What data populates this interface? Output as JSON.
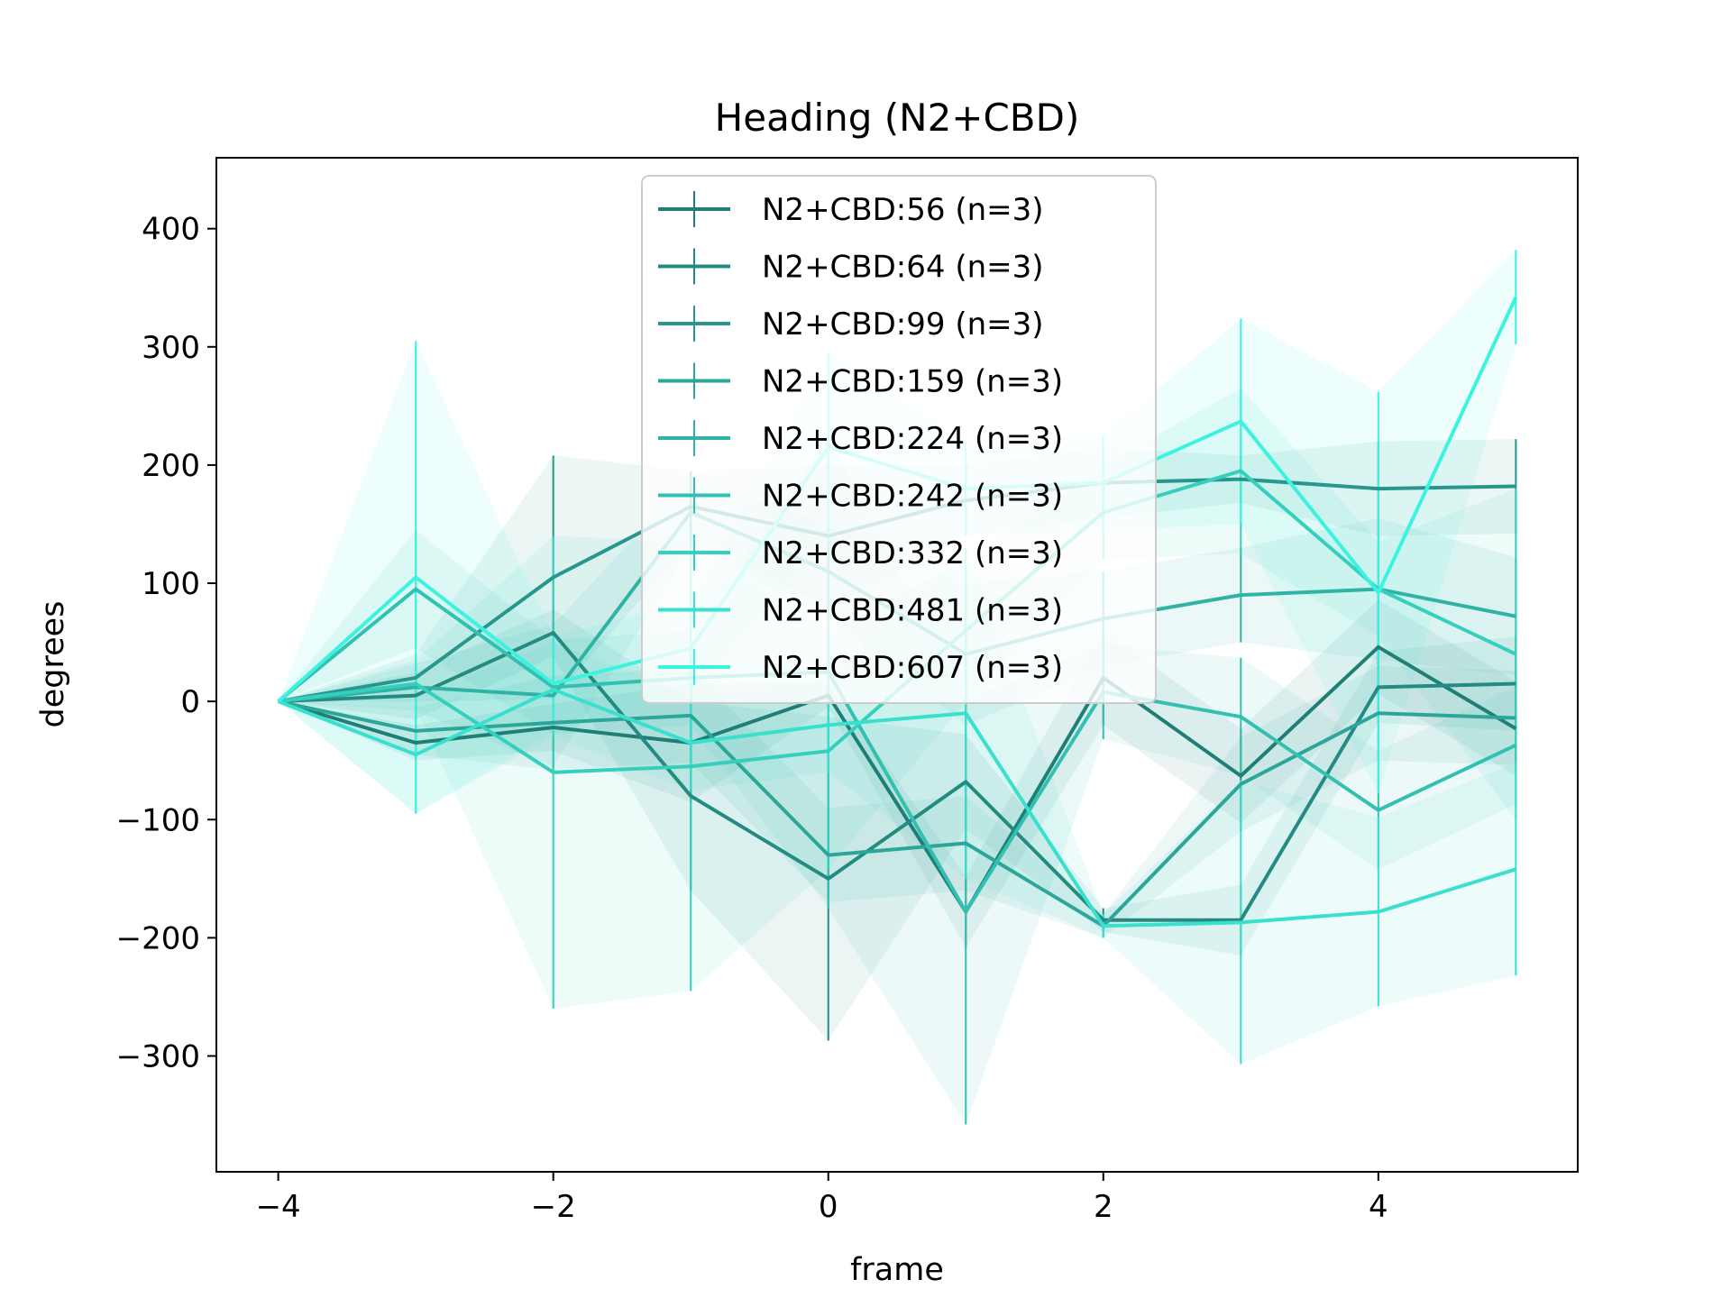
{
  "chart_data": {
    "type": "line",
    "title": "Heading (N2+CBD)",
    "xlabel": "frame",
    "ylabel": "degrees",
    "xlim": [
      -4.45,
      5.45
    ],
    "ylim": [
      -398,
      460
    ],
    "xticks": [
      -4,
      -2,
      0,
      2,
      4
    ],
    "xtick_labels": [
      "−4",
      "−2",
      "0",
      "2",
      "4"
    ],
    "yticks": [
      -300,
      -200,
      -100,
      0,
      100,
      200,
      300,
      400
    ],
    "ytick_labels": [
      "−300",
      "−200",
      "−100",
      "0",
      "100",
      "200",
      "300",
      "400"
    ],
    "x": [
      -4,
      -3,
      -2,
      -1,
      0,
      1,
      2,
      3,
      4,
      5
    ],
    "legend_position": "upper center",
    "series": [
      {
        "name": "N2+CBD:56 (n=3)",
        "color": "#1f7f77",
        "values": [
          0,
          -35,
          -22,
          -35,
          5,
          -178,
          20,
          -63,
          46,
          -23
        ],
        "errors": [
          0,
          15,
          20,
          50,
          10,
          30,
          40,
          40,
          40,
          40
        ]
      },
      {
        "name": "N2+CBD:64 (n=3)",
        "color": "#238b82",
        "values": [
          0,
          5,
          58,
          -80,
          -150,
          -68,
          -185,
          -185,
          12,
          15
        ],
        "errors": [
          0,
          20,
          20,
          80,
          137,
          40,
          10,
          30,
          30,
          40
        ]
      },
      {
        "name": "N2+CBD:99 (n=3)",
        "color": "#27978d",
        "values": [
          0,
          20,
          105,
          165,
          140,
          170,
          185,
          188,
          180,
          182
        ],
        "errors": [
          0,
          20,
          103,
          30,
          60,
          30,
          30,
          20,
          40,
          40
        ]
      },
      {
        "name": "N2+CBD:159 (n=3)",
        "color": "#2ba699",
        "values": [
          0,
          -25,
          -18,
          -12,
          -130,
          -120,
          -190,
          -70,
          -10,
          -14
        ],
        "errors": [
          0,
          20,
          40,
          40,
          40,
          40,
          10,
          40,
          40,
          40
        ]
      },
      {
        "name": "N2+CBD:224 (n=3)",
        "color": "#2fb3a5",
        "values": [
          0,
          12,
          5,
          160,
          110,
          40,
          70,
          90,
          95,
          72
        ],
        "errors": [
          0,
          20,
          60,
          30,
          40,
          60,
          40,
          40,
          60,
          50
        ]
      },
      {
        "name": "N2+CBD:242 (n=3)",
        "color": "#32c1b1",
        "values": [
          0,
          95,
          12,
          20,
          25,
          -178,
          8,
          -13,
          -92,
          -37
        ],
        "errors": [
          0,
          50,
          40,
          40,
          200,
          180,
          40,
          50,
          50,
          50
        ]
      },
      {
        "name": "N2+CBD:332 (n=3)",
        "color": "#35cfbe",
        "values": [
          0,
          15,
          -60,
          -55,
          -42,
          60,
          160,
          195,
          95,
          40
        ],
        "errors": [
          0,
          20,
          200,
          190,
          100,
          60,
          40,
          70,
          40,
          140
        ]
      },
      {
        "name": "N2+CBD:481 (n=3)",
        "color": "#38e0cd",
        "values": [
          0,
          -45,
          10,
          -35,
          -20,
          -10,
          -190,
          -187,
          -178,
          -142
        ],
        "errors": [
          0,
          50,
          40,
          40,
          40,
          140,
          10,
          120,
          80,
          90
        ]
      },
      {
        "name": "N2+CBD:607 (n=3)",
        "color": "#3cf2e0",
        "values": [
          0,
          105,
          15,
          45,
          215,
          180,
          185,
          237,
          92,
          342
        ],
        "errors": [
          0,
          200,
          40,
          40,
          80,
          40,
          40,
          87,
          170,
          40
        ]
      }
    ]
  }
}
